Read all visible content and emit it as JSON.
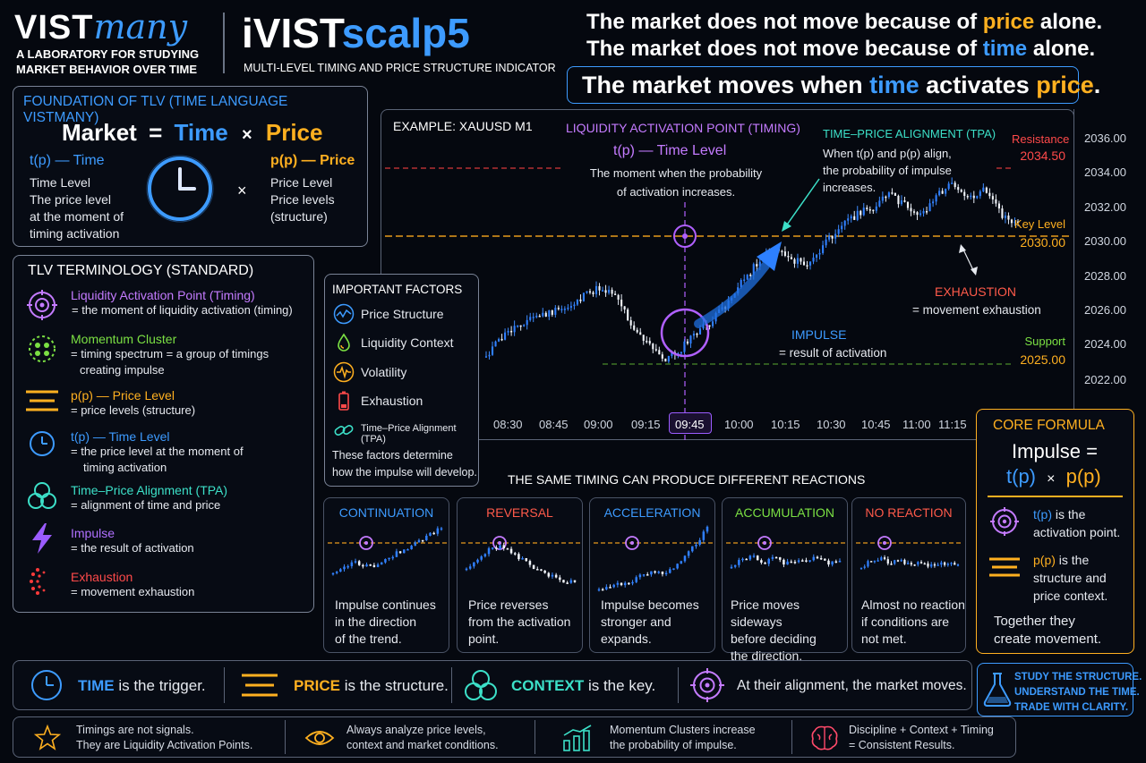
{
  "brand": {
    "logo_vist": "VIST",
    "logo_many": "many",
    "tagline_line1": "A LABORATORY FOR STUDYING",
    "tagline_line2": "MARKET BEHAVIOR OVER TIME",
    "product_a": "iVIST",
    "product_b": "scalp5",
    "product_subtitle": "MULTI-LEVEL TIMING AND PRICE STRUCTURE INDICATOR"
  },
  "headline": {
    "line1_a": "The market does not move because of ",
    "line1_b": "price",
    "line1_c": " alone.",
    "line2_a": "The market does not move because of ",
    "line2_b": "time",
    "line2_c": " alone.",
    "line3_a": "The market moves when ",
    "line3_b": "time",
    "line3_c": " activates ",
    "line3_d": "price",
    "line3_e": "."
  },
  "foundation": {
    "title": "FOUNDATION OF TLV (TIME LANGUAGE VISTMANY)",
    "eq_market": "Market",
    "eq_equals": "=",
    "eq_time": "Time",
    "eq_times": "×",
    "eq_price": "Price",
    "time_head": "t(p) — Time",
    "time_l1": "Time Level",
    "time_l2": "The price level",
    "time_l3": "at the moment of",
    "time_l4": "timing activation",
    "mult": "×",
    "price_head": "p(p) — Price",
    "price_l1": "Price Level",
    "price_l2": "Price levels",
    "price_l3": "(structure)"
  },
  "terminology": {
    "title": "TLV TERMINOLOGY (STANDARD)",
    "items": [
      {
        "title": "Liquidity Activation Point (Timing)",
        "d1": "= the moment of liquidity activation (timing)",
        "d2": "",
        "color": "#c47bff"
      },
      {
        "title": "Momentum Cluster",
        "d1": "= timing spectrum = a group of timings",
        "d2": "creating impulse",
        "color": "#7be043"
      },
      {
        "title": "p(p) — Price Level",
        "d1": "= price levels (structure)",
        "d2": "",
        "color": "#ffb020"
      },
      {
        "title": "t(p) — Time Level",
        "d1": "= the price level at the moment of",
        "d2": "timing activation",
        "color": "#3d9bff"
      },
      {
        "title": "Time–Price Alignment (TPA)",
        "d1": "= alignment of time and price",
        "d2": "",
        "color": "#3ce0c8"
      },
      {
        "title": "Impulse",
        "d1": "= the result of activation",
        "d2": "",
        "color": "#b070ff"
      },
      {
        "title": "Exhaustion",
        "d1": "= movement exhaustion",
        "d2": "",
        "color": "#ff4a4a"
      }
    ]
  },
  "factors": {
    "title": "IMPORTANT FACTORS",
    "items": [
      "Price Structure",
      "Liquidity Context",
      "Volatility",
      "Exhaustion",
      "Time–Price Alignment (TPA)"
    ],
    "note_l1": "These factors determine",
    "note_l2": "how the impulse will develop."
  },
  "chart": {
    "example": "EXAMPLE: XAUUSD M1",
    "lap_title": "LIQUIDITY ACTIVATION POINT (TIMING)",
    "lap_sub": "t(p) — Time Level",
    "lap_d1": "The moment when the probability",
    "lap_d2": "of activation increases.",
    "tpa_title": "TIME–PRICE ALIGNMENT (TPA)",
    "tpa_d1": "When t(p) and p(p) align,",
    "tpa_d2": "the probability of impulse",
    "tpa_d3": "increases.",
    "resistance": "Resistance",
    "resistance_val": "2034.50",
    "key_level": "Key Level",
    "key_level_val": "2030.00",
    "support": "Support",
    "support_val": "2025.00",
    "exhaustion": "EXHAUSTION",
    "exhaustion_d": "= movement exhaustion",
    "impulse": "IMPULSE",
    "impulse_d": "= result of activation",
    "y_ticks": [
      "2036.00",
      "2034.00",
      "2032.00",
      "2030.00",
      "2028.00",
      "2026.00",
      "2024.00",
      "2022.00"
    ],
    "x_ticks": [
      "08:30",
      "08:45",
      "09:00",
      "09:15",
      "09:45",
      "10:00",
      "10:15",
      "10:30",
      "10:45",
      "11:00",
      "11:15"
    ]
  },
  "reactions": {
    "title": "THE SAME TIMING CAN PRODUCE DIFFERENT REACTIONS",
    "cards": [
      {
        "title": "CONTINUATION",
        "color": "#3d9bff",
        "l1": "Impulse continues",
        "l2": "in the direction",
        "l3": "of the trend."
      },
      {
        "title": "REVERSAL",
        "color": "#ff5a4a",
        "l1": "Price reverses",
        "l2": "from the activation",
        "l3": "point."
      },
      {
        "title": "ACCELERATION",
        "color": "#3d9bff",
        "l1": "Impulse becomes",
        "l2": "stronger and",
        "l3": "expands."
      },
      {
        "title": "ACCUMULATION",
        "color": "#7be043",
        "l1": "Price moves sideways",
        "l2": "before deciding",
        "l3": "the direction."
      },
      {
        "title": "NO REACTION",
        "color": "#ff5a4a",
        "l1": "Almost no reaction",
        "l2": "if conditions are",
        "l3": "not met."
      }
    ]
  },
  "core": {
    "title": "CORE FORMULA",
    "impulse": "Impulse =",
    "tp": "t(p)",
    "times": "×",
    "pp": "p(p)",
    "tp_label": "t(p)",
    "tp_desc1": " is the",
    "tp_desc2": "activation point.",
    "pp_label": "p(p)",
    "pp_desc1": " is the",
    "pp_desc2": "structure and",
    "pp_desc3": "price context.",
    "together1": "Together they",
    "together2": "create movement."
  },
  "strip": {
    "time_word": "TIME",
    "time_rest": " is the trigger.",
    "price_word": "PRICE",
    "price_rest": " is the structure.",
    "context_word": "CONTEXT",
    "context_rest": " is the key.",
    "align_text": "At their alignment, the market moves.",
    "study1": "STUDY THE STRUCTURE.",
    "study2": "UNDERSTAND THE TIME.",
    "study3": "TRADE WITH CLARITY."
  },
  "bottom": {
    "b1_l1": "Timings are not signals.",
    "b1_l2": "They are Liquidity Activation Points.",
    "b2_l1": "Always analyze price levels,",
    "b2_l2": "context and market conditions.",
    "b3_l1": "Momentum Clusters increase",
    "b3_l2": "the probability of impulse.",
    "b4_l1": "Discipline + Context + Timing",
    "b4_l2": "= Consistent Results."
  }
}
